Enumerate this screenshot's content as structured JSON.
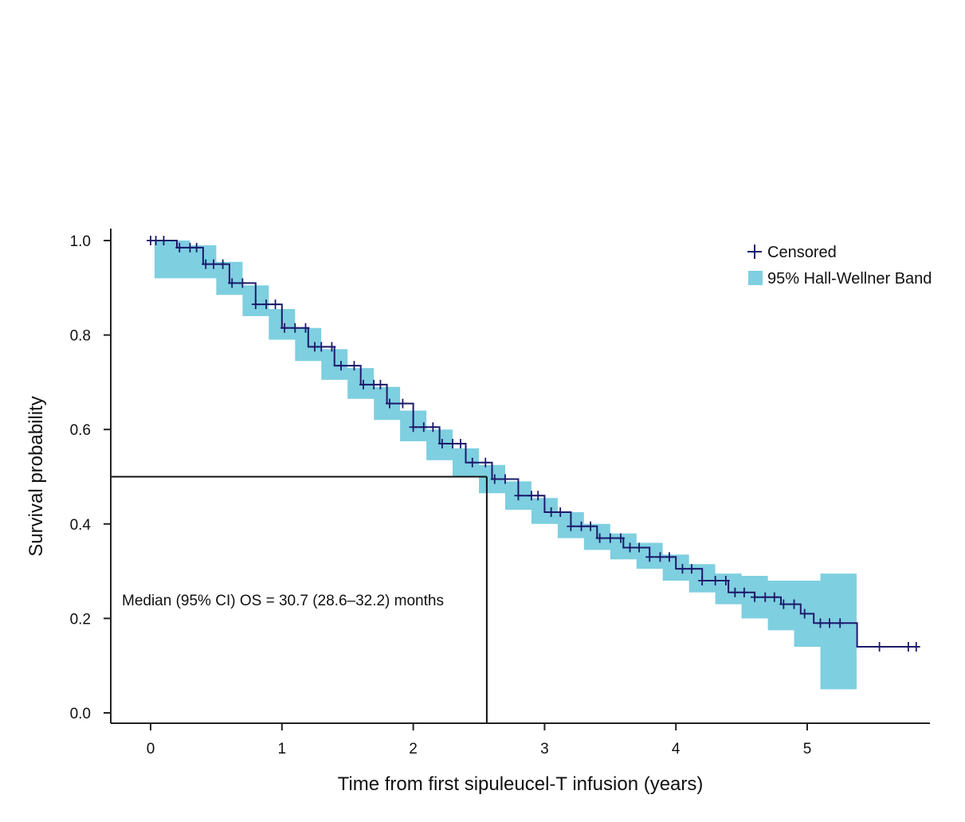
{
  "chart_data": {
    "type": "line",
    "title": "",
    "xlabel": "Time from first sipuleucel-T infusion (years)",
    "ylabel": "Survival probability",
    "xlim": [
      -0.31,
      5.93
    ],
    "ylim": [
      -0.023,
      1.03
    ],
    "xticks": [
      0,
      1,
      2,
      3,
      4,
      5
    ],
    "xtick_labels": [
      "0",
      "1",
      "2",
      "3",
      "4",
      "5"
    ],
    "yticks": [
      0.0,
      0.2,
      0.4,
      0.6,
      0.8,
      1.0
    ],
    "ytick_labels": [
      "0.0",
      "0.2",
      "0.4",
      "0.6",
      "0.8",
      "1.0"
    ],
    "grid": false,
    "legend_position": "top-right",
    "legend": [
      {
        "label": "Censored",
        "marker": "plus"
      },
      {
        "label": "95% Hall-Wellner Band",
        "marker": "square"
      }
    ],
    "colors": {
      "curve": "#1c1a6b",
      "band": "#7ecfe0",
      "axis": "#222222",
      "median_line": "#111111"
    },
    "series": [
      {
        "values_x": [
          0,
          0.2,
          0.4,
          0.6,
          0.8,
          1.0,
          1.2,
          1.4,
          1.6,
          1.8,
          2.0,
          2.2,
          2.4,
          2.6,
          2.8,
          3.0,
          3.2,
          3.4,
          3.6,
          3.8,
          4.0,
          4.2,
          4.4,
          4.6,
          4.8,
          4.95,
          5.05,
          5.25,
          5.38,
          5.85
        ],
        "values_y": [
          1.0,
          0.985,
          0.95,
          0.91,
          0.865,
          0.815,
          0.775,
          0.735,
          0.695,
          0.655,
          0.605,
          0.57,
          0.53,
          0.495,
          0.46,
          0.425,
          0.395,
          0.37,
          0.35,
          0.33,
          0.305,
          0.28,
          0.255,
          0.245,
          0.23,
          0.21,
          0.19,
          0.19,
          0.14,
          0.14
        ]
      }
    ],
    "band": {
      "x": [
        0.03,
        0.15,
        0.3,
        0.5,
        0.7,
        0.9,
        1.1,
        1.3,
        1.5,
        1.7,
        1.9,
        2.1,
        2.3,
        2.5,
        2.7,
        2.9,
        3.1,
        3.3,
        3.5,
        3.7,
        3.9,
        4.1,
        4.3,
        4.5,
        4.7,
        4.9,
        5.1,
        5.25,
        5.37
      ],
      "lower": [
        0.92,
        0.92,
        0.92,
        0.885,
        0.84,
        0.79,
        0.745,
        0.705,
        0.665,
        0.62,
        0.575,
        0.535,
        0.5,
        0.465,
        0.43,
        0.4,
        0.37,
        0.345,
        0.325,
        0.305,
        0.28,
        0.255,
        0.23,
        0.2,
        0.175,
        0.14,
        0.05,
        0.05,
        0.05
      ],
      "upper": [
        1.0,
        1.0,
        0.99,
        0.955,
        0.905,
        0.855,
        0.815,
        0.77,
        0.73,
        0.69,
        0.64,
        0.6,
        0.56,
        0.525,
        0.49,
        0.455,
        0.425,
        0.4,
        0.38,
        0.36,
        0.335,
        0.315,
        0.295,
        0.29,
        0.28,
        0.28,
        0.295,
        0.295,
        0.295
      ]
    },
    "censored_x": [
      0.0,
      0.04,
      0.1,
      0.22,
      0.3,
      0.35,
      0.42,
      0.48,
      0.55,
      0.62,
      0.7,
      0.8,
      0.88,
      0.95,
      1.02,
      1.1,
      1.18,
      1.25,
      1.3,
      1.38,
      1.45,
      1.55,
      1.62,
      1.7,
      1.75,
      1.82,
      1.92,
      2.0,
      2.08,
      2.15,
      2.22,
      2.3,
      2.36,
      2.45,
      2.55,
      2.62,
      2.7,
      2.8,
      2.9,
      2.95,
      3.05,
      3.12,
      3.2,
      3.28,
      3.35,
      3.42,
      3.5,
      3.58,
      3.65,
      3.72,
      3.8,
      3.88,
      3.95,
      4.05,
      4.12,
      4.2,
      4.3,
      4.38,
      4.45,
      4.52,
      4.6,
      4.68,
      4.75,
      4.82,
      4.9,
      4.98,
      5.1,
      5.17,
      5.25,
      5.55,
      5.77,
      5.83
    ],
    "reference_line": {
      "median_x": 2.56,
      "y": 0.5
    },
    "annotation": "Median (95% CI) OS = 30.7 (28.6–32.2) months"
  }
}
